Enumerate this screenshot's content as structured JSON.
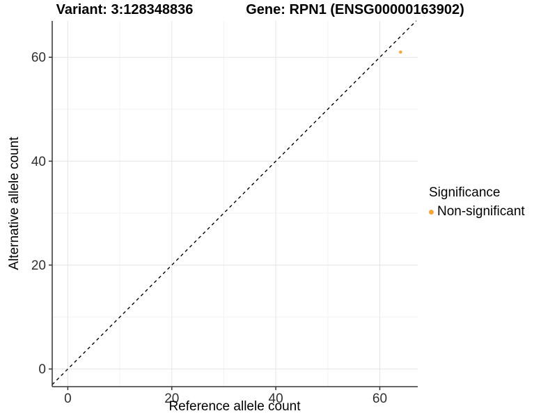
{
  "header": {
    "variant_title": "Variant: 3:128348836",
    "gene_title": "Gene: RPN1 (ENSG00000163902)"
  },
  "axes": {
    "x_label": "Reference allele count",
    "y_label": "Alternative allele count"
  },
  "legend": {
    "title": "Significance",
    "item_label": "Non-significant"
  },
  "chart_data": {
    "type": "scatter",
    "title_left": "Variant: 3:128348836",
    "title_right": "Gene: RPN1 (ENSG00000163902)",
    "xlabel": "Reference allele count",
    "ylabel": "Alternative allele count",
    "xlim": [
      -3,
      67.3
    ],
    "ylim": [
      -3.4,
      67
    ],
    "x_ticks": [
      0,
      20,
      40,
      60
    ],
    "y_ticks": [
      0,
      20,
      40,
      60
    ],
    "x_minor_ticks": [
      10,
      30,
      50
    ],
    "y_minor_ticks": [
      10,
      30,
      50
    ],
    "grid": true,
    "points": [
      {
        "x": 64,
        "y": 61,
        "series": "Non-significant"
      }
    ],
    "identity_line": {
      "slope": 1,
      "intercept": 0,
      "style": "dashed"
    },
    "legend": {
      "title": "Significance",
      "position": "right",
      "entries": [
        {
          "label": "Non-significant",
          "color": "#FAA43C"
        }
      ]
    }
  },
  "colors": {
    "point": "#FAA43C",
    "grid_major": "#E5E5E5",
    "grid_minor": "#F2F2F2",
    "axis_line": "#333333",
    "tick_text": "#303030",
    "dashed_line": "#000000",
    "background": "#FFFFFF"
  }
}
